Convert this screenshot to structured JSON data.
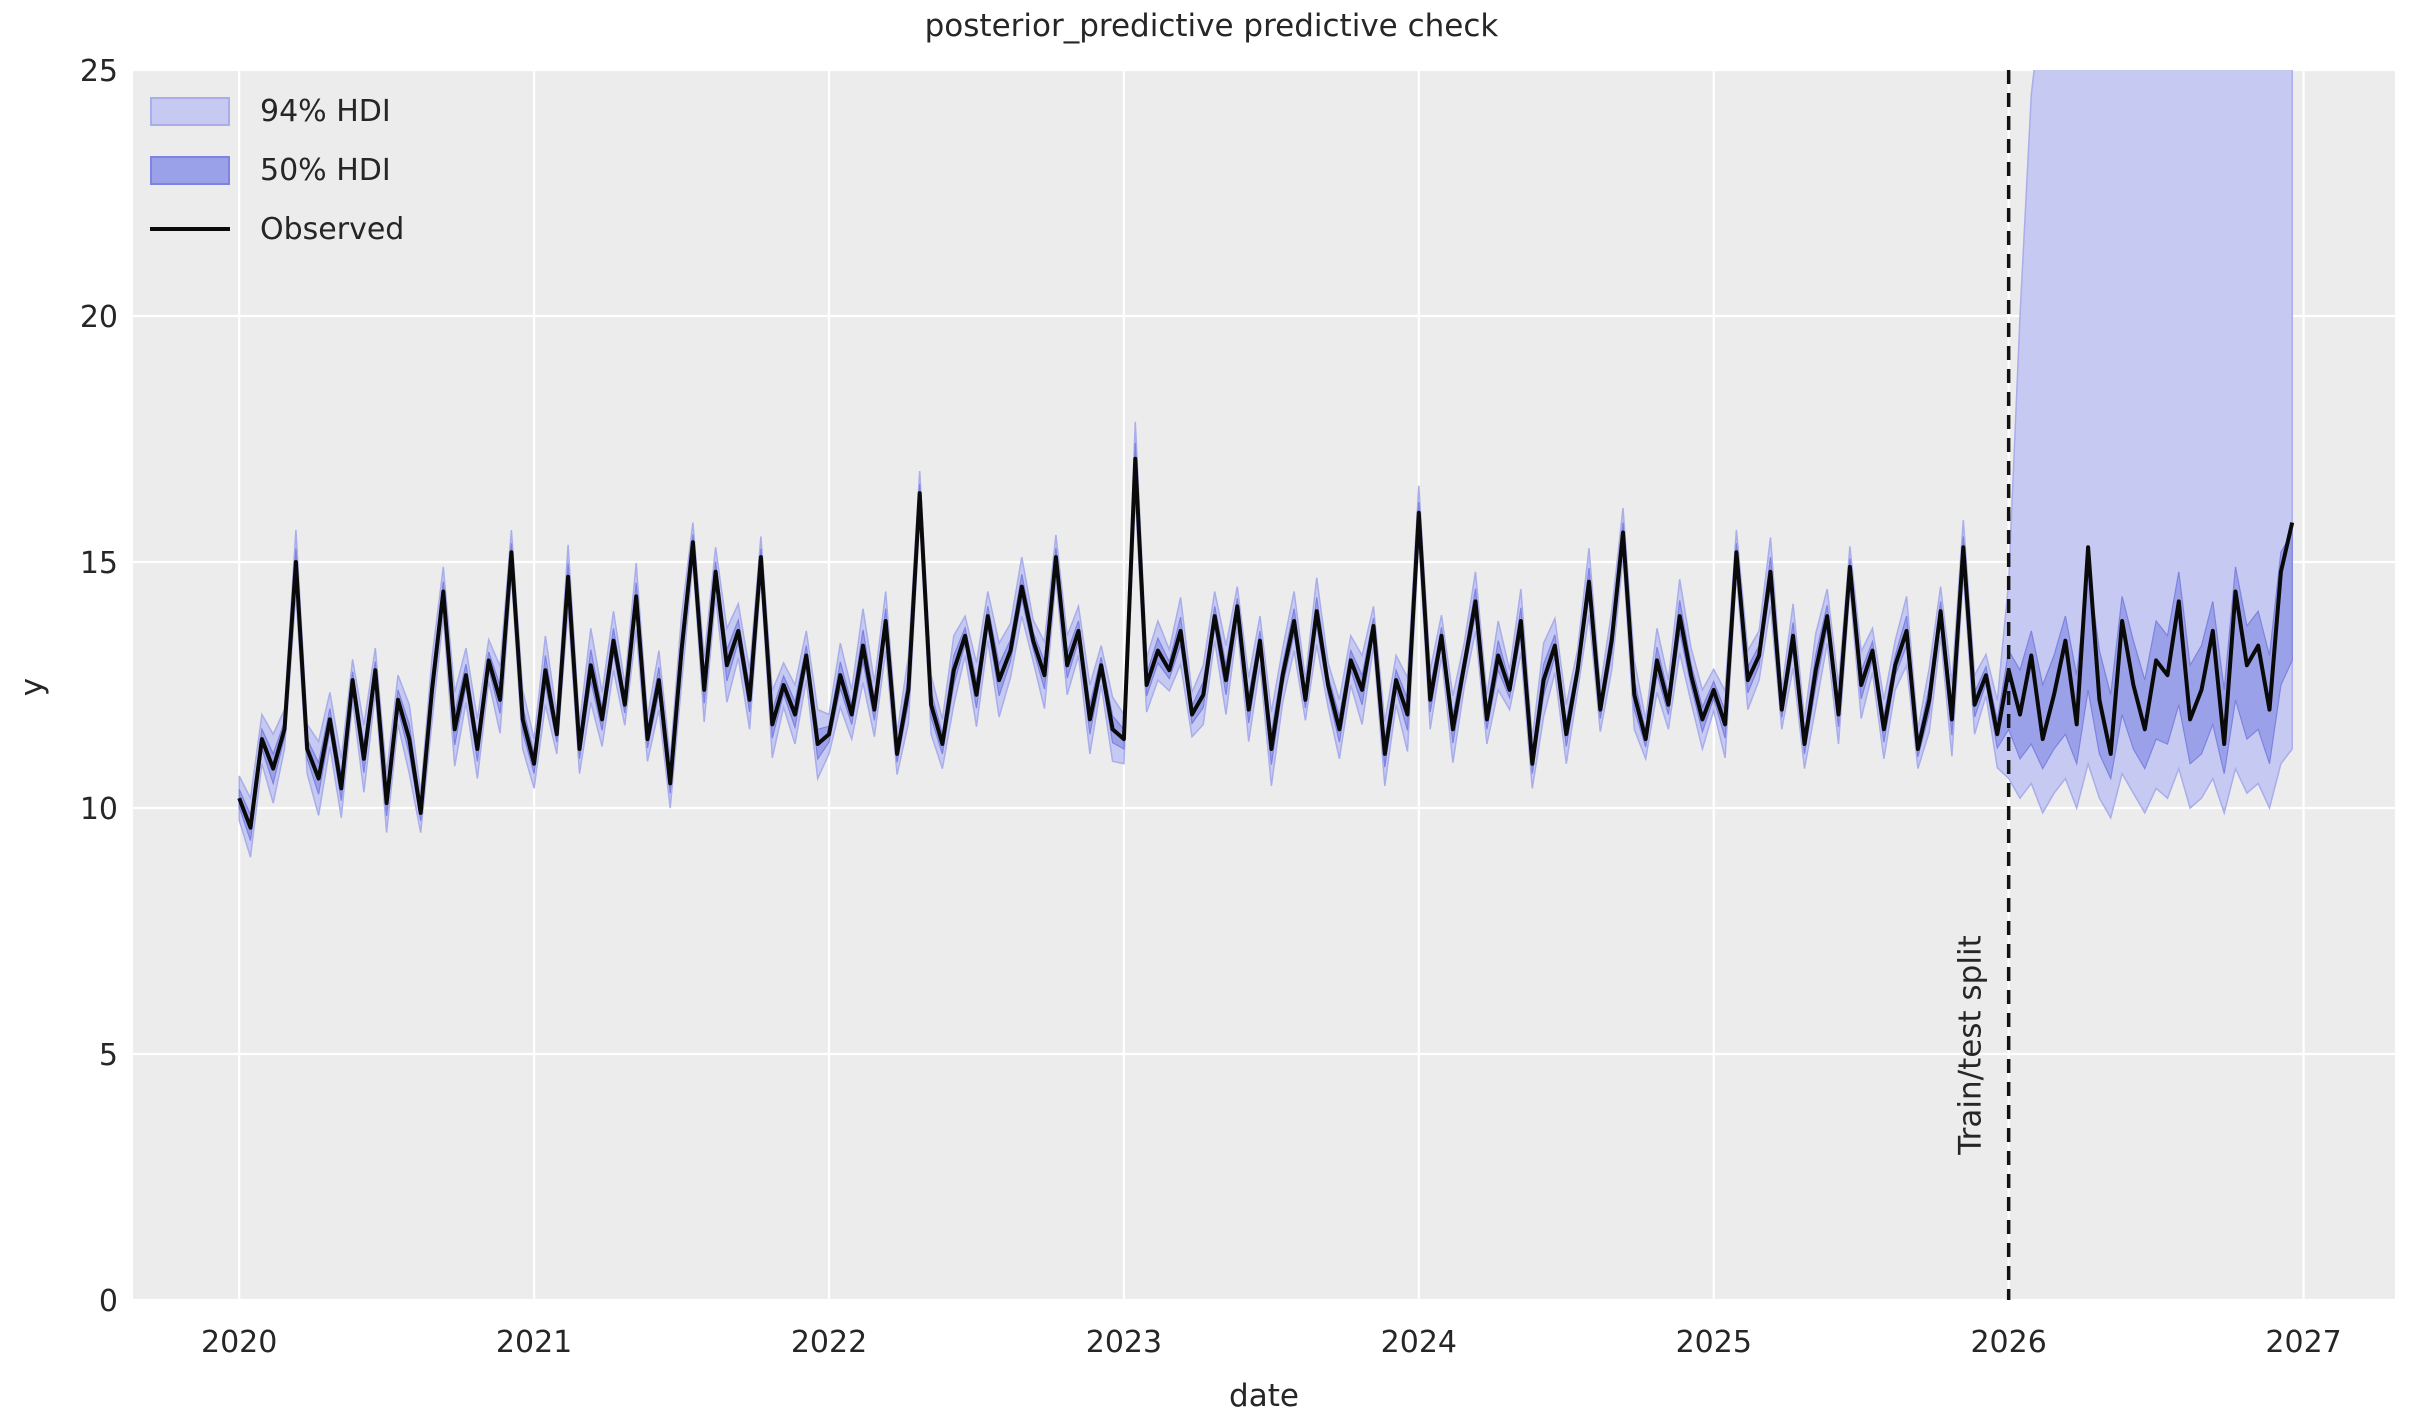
{
  "title": "posterior_predictive predictive check",
  "chart_data": {
    "type": "line",
    "title": "posterior_predictive predictive check",
    "xlabel": "date",
    "ylabel": "y",
    "xlim": [
      2019.64,
      2027.31
    ],
    "ylim": [
      0,
      25
    ],
    "xticks": [
      2020,
      2021,
      2022,
      2023,
      2024,
      2025,
      2026,
      2027
    ],
    "yticks": [
      0,
      5,
      10,
      15,
      20,
      25
    ],
    "grid": "white-on-gray",
    "legend_position": "upper-left-inside-frameless",
    "train_test_split_x": 2026.0,
    "split_label": "Train/test split",
    "x_start": 2020.0,
    "x_step_years": 0.0384615,
    "split_index": 156,
    "observed": [
      10.2,
      9.6,
      11.4,
      10.8,
      11.6,
      15.0,
      11.2,
      10.6,
      11.8,
      10.4,
      12.6,
      11.0,
      12.8,
      10.1,
      12.2,
      11.4,
      9.9,
      12.4,
      14.4,
      11.6,
      12.7,
      11.2,
      13.0,
      12.2,
      15.2,
      11.8,
      10.9,
      12.8,
      11.5,
      14.7,
      11.2,
      12.9,
      11.8,
      13.4,
      12.1,
      14.3,
      11.4,
      12.6,
      10.5,
      13.2,
      15.4,
      12.4,
      14.8,
      12.9,
      13.6,
      12.2,
      15.1,
      11.7,
      12.5,
      11.9,
      13.1,
      11.3,
      11.5,
      12.7,
      11.9,
      13.3,
      12.0,
      13.8,
      11.1,
      12.4,
      16.4,
      12.1,
      11.3,
      12.8,
      13.5,
      12.3,
      13.9,
      12.6,
      13.2,
      14.5,
      13.4,
      12.7,
      15.1,
      12.9,
      13.6,
      11.8,
      12.9,
      11.6,
      11.4,
      17.1,
      12.5,
      13.2,
      12.8,
      13.6,
      11.9,
      12.3,
      13.9,
      12.6,
      14.1,
      12.0,
      13.4,
      11.2,
      12.7,
      13.8,
      12.2,
      14.0,
      12.5,
      11.6,
      13.0,
      12.4,
      13.7,
      11.1,
      12.6,
      11.9,
      16.0,
      12.2,
      13.5,
      11.6,
      12.9,
      14.2,
      11.8,
      13.1,
      12.4,
      13.8,
      10.9,
      12.6,
      13.3,
      11.5,
      12.8,
      14.6,
      12.0,
      13.4,
      15.6,
      12.3,
      11.4,
      13.0,
      12.1,
      13.9,
      12.7,
      11.8,
      12.4,
      11.7,
      15.2,
      12.6,
      13.1,
      14.8,
      12.0,
      13.5,
      11.3,
      12.8,
      13.9,
      11.9,
      14.9,
      12.5,
      13.2,
      11.6,
      12.9,
      13.6,
      11.2,
      12.2,
      14.0,
      11.8,
      15.3,
      12.1,
      12.7,
      11.5,
      12.8,
      11.9,
      13.1,
      11.4,
      12.3,
      13.4,
      11.7,
      15.3,
      12.2,
      11.1,
      13.8,
      12.5,
      11.6,
      13.0,
      12.7,
      14.2,
      11.8,
      12.4,
      13.6,
      11.3,
      14.4,
      12.9,
      13.3,
      12.0,
      14.8,
      15.8
    ],
    "hdi94": {
      "label": "94% HDI",
      "pre_split_halfwidth_cycle": [
        0.45,
        0.6,
        0.5,
        0.7,
        0.4,
        0.65,
        0.5,
        0.75,
        0.55,
        0.6,
        0.42,
        0.68
      ],
      "post_split_lower": [
        10.6,
        10.2,
        10.5,
        9.9,
        10.3,
        10.6,
        10.0,
        10.9,
        10.2,
        9.8,
        10.7,
        10.3,
        9.9,
        10.4,
        10.2,
        10.8,
        10.0,
        10.2,
        10.6,
        9.9,
        10.8,
        10.3,
        10.5,
        10.0,
        10.9,
        11.2
      ],
      "post_split_upper": [
        14.6,
        20.0,
        24.5,
        26.5,
        27.5,
        28.0,
        27.6,
        28.4,
        27.8,
        27.2,
        28.6,
        27.9,
        27.4,
        28.1,
        27.7,
        28.8,
        27.5,
        27.9,
        28.3,
        27.3,
        28.9,
        28.0,
        28.2,
        27.6,
        29.0,
        29.5
      ]
    },
    "hdi50": {
      "label": "50% HDI",
      "pre_split_halfwidth_cycle": [
        0.18,
        0.26,
        0.2,
        0.3,
        0.16,
        0.27,
        0.2,
        0.32,
        0.22,
        0.25,
        0.17,
        0.28
      ],
      "post_split_lower": [
        11.6,
        11.0,
        11.3,
        10.8,
        11.2,
        11.5,
        10.9,
        12.4,
        11.1,
        10.6,
        11.9,
        11.2,
        10.8,
        11.4,
        11.3,
        12.1,
        10.9,
        11.1,
        11.7,
        10.7,
        12.2,
        11.4,
        11.6,
        10.9,
        12.5,
        13.0
      ],
      "post_split_upper": [
        13.2,
        12.8,
        13.6,
        12.5,
        13.1,
        13.9,
        12.7,
        14.9,
        13.2,
        12.3,
        14.3,
        13.4,
        12.6,
        13.8,
        13.5,
        14.8,
        12.9,
        13.3,
        14.2,
        12.4,
        14.9,
        13.7,
        14.0,
        13.1,
        15.2,
        15.6
      ]
    },
    "legend": [
      {
        "label": "94% HDI"
      },
      {
        "label": "50% HDI"
      },
      {
        "label": "Observed"
      }
    ],
    "colors": {
      "hdi94_fill": "#c6c9f1",
      "hdi94_edge": "#a9adea",
      "hdi50_fill": "#9ba1e9",
      "hdi50_edge": "#7d83de",
      "observed": "#0a0a0a",
      "split_line": "#111111",
      "plot_background": "#ececec",
      "grid": "#ffffff",
      "text": "#262626"
    }
  }
}
